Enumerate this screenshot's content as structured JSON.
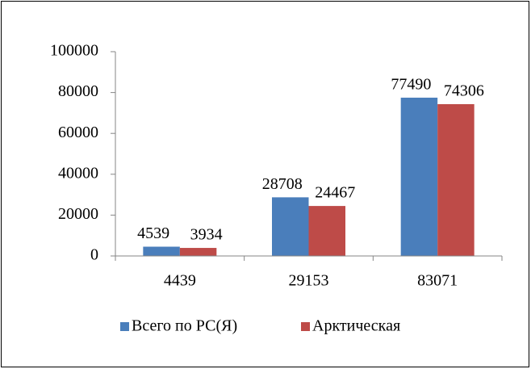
{
  "chart_data": {
    "type": "bar",
    "categories": [
      "4439",
      "29153",
      "83071"
    ],
    "series": [
      {
        "name": "Всего по РС(Я)",
        "color": "#4a7ebb",
        "values": [
          4539,
          28708,
          77490
        ]
      },
      {
        "name": "Арктическая",
        "color": "#be4b48",
        "values": [
          3934,
          24467,
          74306
        ]
      }
    ],
    "ylim": [
      0,
      100000
    ],
    "yticks": [
      0,
      20000,
      40000,
      60000,
      80000,
      100000
    ],
    "grid": false,
    "legend": "bottom"
  }
}
